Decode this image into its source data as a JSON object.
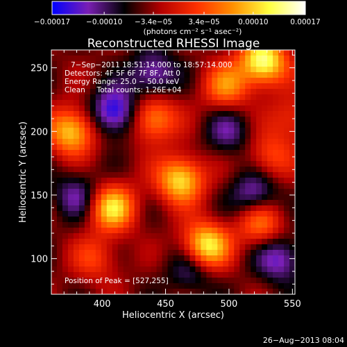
{
  "chart_data": {
    "type": "heatmap",
    "title": "Reconstructed RHESSI Image",
    "xlabel": "Heliocentric X (arcsec)",
    "ylabel": "Heliocentric Y (arcsec)",
    "xlim": [
      360,
      552
    ],
    "ylim": [
      72,
      264
    ],
    "x_ticks": [
      400,
      450,
      500,
      550
    ],
    "y_ticks": [
      100,
      150,
      200,
      250
    ],
    "colorbar": {
      "label": "(photons cm⁻² s⁻¹ asec⁻²)",
      "range": [
        -0.00017,
        0.00017
      ],
      "tick_labels_bottom": [
        "−0.00017",
        "−0.00010",
        "0.00010",
        "0.00017"
      ],
      "tick_labels_bottom_values": [
        -0.00017,
        -0.0001,
        0.0001,
        0.00017
      ],
      "tick_labels_top": [
        "−3.4e−05",
        "3.4e−05"
      ],
      "tick_labels_top_values": [
        -3.4e-05,
        3.4e-05
      ],
      "colors": [
        "#0000ff",
        "#7a1fb4",
        "#000000",
        "#b40000",
        "#ff3000",
        "#ff9000",
        "#ffff40",
        "#ffffff"
      ]
    },
    "annotations": {
      "time_range": "7−Sep−2011 18:51:14.000 to 18:57:14.000",
      "detectors": "Detectors: 4F 5F 6F 7F 8F, Att 0",
      "energy_range": "Energy Range: 25.0 − 50.0 keV",
      "algorithm": "Clean     Total counts: 1.26E+04",
      "peak": "Position of Peak = [527,255]"
    },
    "peak_position": [
      527,
      255
    ],
    "blobs": [
      {
        "x": 527,
        "y": 255,
        "v": 1.0
      },
      {
        "x": 462,
        "y": 162,
        "v": 0.85
      },
      {
        "x": 408,
        "y": 140,
        "v": 0.8
      },
      {
        "x": 376,
        "y": 200,
        "v": 0.8
      },
      {
        "x": 440,
        "y": 210,
        "v": 0.65
      },
      {
        "x": 482,
        "y": 110,
        "v": 0.9
      },
      {
        "x": 525,
        "y": 128,
        "v": 0.55
      },
      {
        "x": 498,
        "y": 235,
        "v": 0.55
      },
      {
        "x": 395,
        "y": 100,
        "v": 0.35
      },
      {
        "x": 550,
        "y": 210,
        "v": 0.35
      },
      {
        "x": 532,
        "y": 180,
        "v": 0.4
      },
      {
        "x": 410,
        "y": 215,
        "v": -0.7
      },
      {
        "x": 520,
        "y": 150,
        "v": -0.5
      },
      {
        "x": 440,
        "y": 245,
        "v": -0.5
      },
      {
        "x": 380,
        "y": 150,
        "v": -0.4
      },
      {
        "x": 540,
        "y": 100,
        "v": -0.5
      },
      {
        "x": 500,
        "y": 200,
        "v": -0.35
      },
      {
        "x": 470,
        "y": 90,
        "v": -0.35
      }
    ]
  },
  "footer": {
    "date": "26−Aug−2013 08:04"
  }
}
